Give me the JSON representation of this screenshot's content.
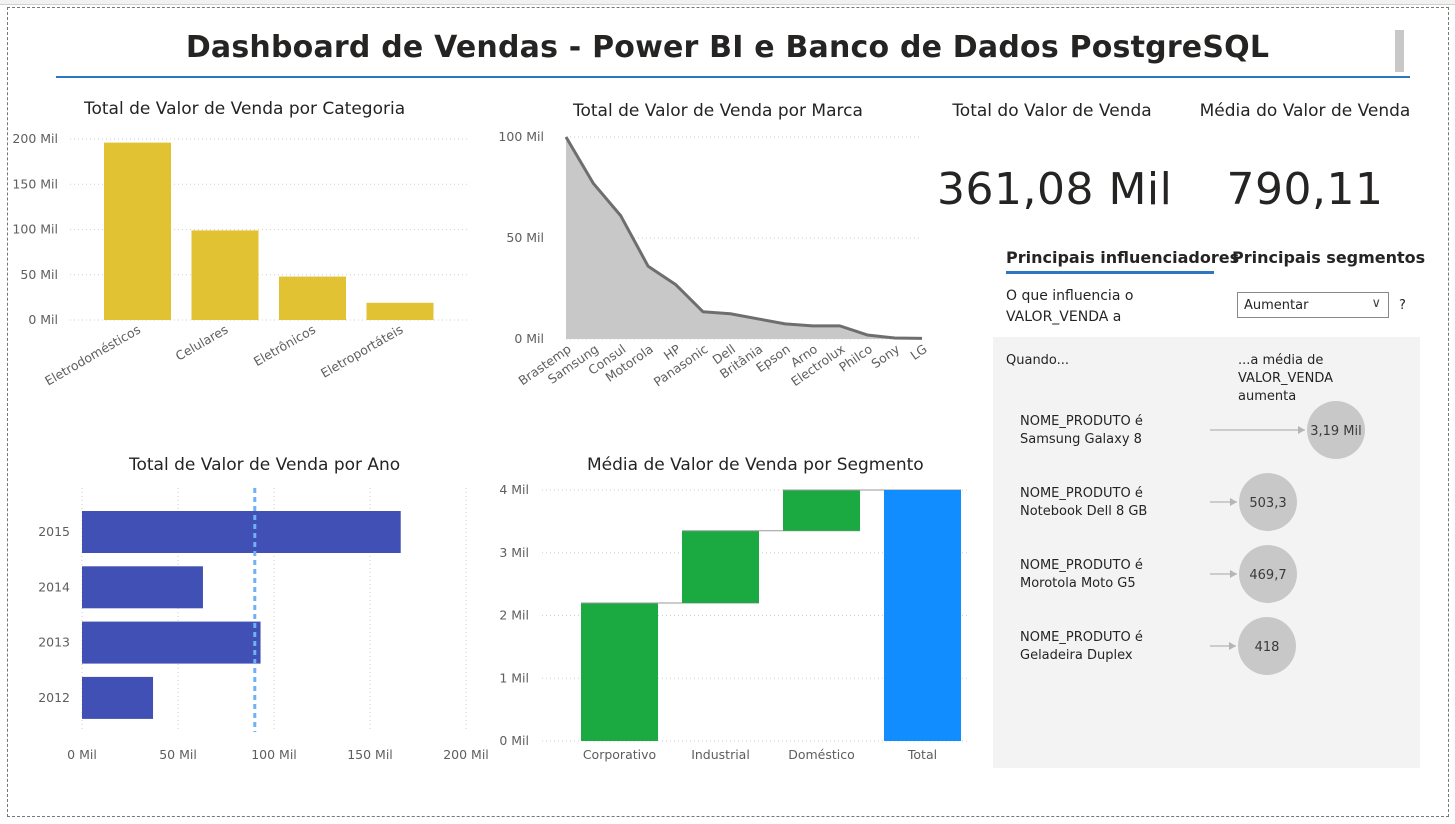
{
  "dashboard": {
    "title": "Dashboard de Vendas - Power BI e Banco de Dados PostgreSQL"
  },
  "category_chart": {
    "title": "Total de Valor de Venda por Categoria",
    "y_ticks": [
      "200 Mil",
      "150 Mil",
      "100 Mil",
      "50 Mil",
      "0 Mil"
    ],
    "color": "#e0c232"
  },
  "brand_chart": {
    "title": "Total de Valor de Venda por Marca",
    "y_ticks": [
      "100 Mil",
      "50 Mil",
      "0 Mil"
    ],
    "line_color": "#6e6e6e",
    "area_color": "#c8c8c8"
  },
  "year_chart": {
    "title": "Total de Valor de Venda por Ano",
    "x_ticks": [
      "0 Mil",
      "50 Mil",
      "100 Mil",
      "150 Mil",
      "200 Mil"
    ],
    "color": "#4150b4",
    "reference_line_color": "#6fb1f2"
  },
  "segment_chart": {
    "title": "Média de Valor de Venda por Segmento",
    "y_ticks": [
      "4 Mil",
      "3 Mil",
      "2 Mil",
      "1 Mil",
      "0 Mil"
    ],
    "increase_color": "#1aaa41",
    "total_color": "#118dff"
  },
  "kpis": {
    "total_title": "Total do Valor de Venda",
    "total_value": "361,08 Mil",
    "avg_title": "Média do Valor de Venda",
    "avg_value": "790,11"
  },
  "influencers": {
    "tab_main": "Principais influenciadores",
    "tab_segments": "Principais segmentos",
    "question_line1": "O que influencia o",
    "question_line2": "VALOR_VENDA a",
    "dropdown_value": "Aumentar",
    "help": "?",
    "when_label": "Quando...",
    "avg_label_line1": "...a média de VALOR_VENDA",
    "avg_label_line2": "aumenta",
    "items": [
      {
        "line1": "NOME_PRODUTO é",
        "line2": "Samsung Galaxy 8",
        "value": "3,19 Mil"
      },
      {
        "line1": "NOME_PRODUTO é",
        "line2": "Notebook Dell 8 GB",
        "value": "503,3"
      },
      {
        "line1": "NOME_PRODUTO é",
        "line2": "Morotola Moto G5",
        "value": "469,7"
      },
      {
        "line1": "NOME_PRODUTO é",
        "line2": "Geladeira Duplex",
        "value": "418"
      }
    ]
  },
  "chart_data": [
    {
      "type": "bar",
      "title": "Total de Valor de Venda por Categoria",
      "categories": [
        "Eletrodomésticos",
        "Celulares",
        "Eletrônicos",
        "Eletroportáteis"
      ],
      "values": [
        196000,
        99000,
        48000,
        19000
      ],
      "ylim": [
        0,
        200000
      ],
      "grid": true
    },
    {
      "type": "area",
      "title": "Total de Valor de Venda por Marca",
      "categories": [
        "Brastemp",
        "Samsung",
        "Consul",
        "Motorola",
        "HP",
        "Panasonic",
        "Dell",
        "Britânia",
        "Epson",
        "Arno",
        "Electrolux",
        "Philco",
        "Sony",
        "LG"
      ],
      "values": [
        100000,
        77000,
        61000,
        36000,
        27000,
        13500,
        12500,
        10000,
        7500,
        6500,
        6500,
        2000,
        500,
        300
      ],
      "ylim": [
        0,
        100000
      ],
      "grid": true
    },
    {
      "type": "bar",
      "orientation": "horizontal",
      "title": "Total de Valor de Venda por Ano",
      "categories": [
        "2015",
        "2014",
        "2013",
        "2012"
      ],
      "values": [
        166000,
        63000,
        93000,
        37000
      ],
      "xlim": [
        0,
        200000
      ],
      "average_line": 90000,
      "grid": true
    },
    {
      "type": "waterfall",
      "title": "Média de Valor de Venda por Segmento",
      "categories": [
        "Corporativo",
        "Industrial",
        "Doméstico",
        "Total"
      ],
      "values": [
        2200,
        1150,
        650,
        4000
      ],
      "ylim": [
        0,
        4000
      ],
      "grid": true
    }
  ]
}
